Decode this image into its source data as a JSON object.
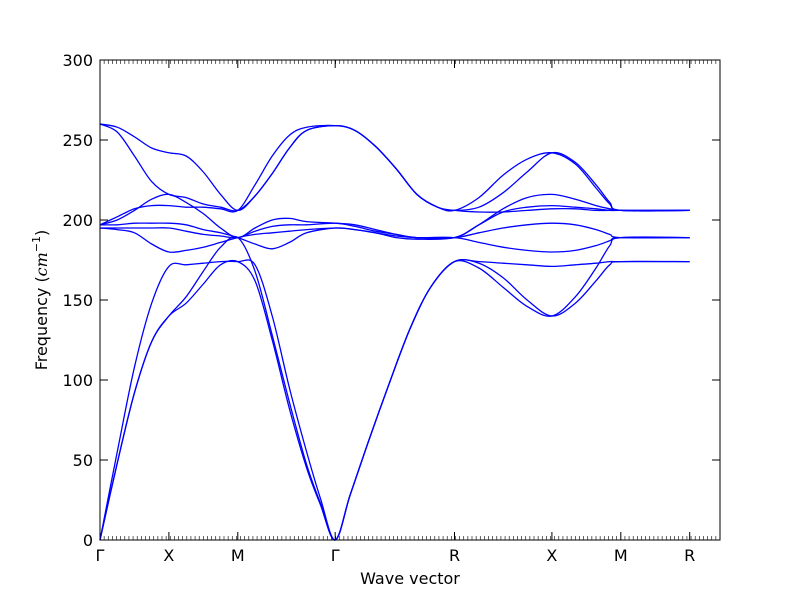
{
  "chart_data": {
    "type": "line",
    "title": "",
    "xlabel": "Wave vector",
    "ylabel_text": "Frequency (",
    "ylabel_unit_base": "cm",
    "ylabel_unit_exp": "−1",
    "ylabel_close": ")",
    "ylim": [
      0,
      300
    ],
    "yticks": [
      0,
      50,
      100,
      150,
      200,
      250,
      300
    ],
    "xlim": [
      0,
      9.0
    ],
    "xticks": [
      {
        "x": 0.0,
        "label": "Γ"
      },
      {
        "x": 1.0,
        "label": "X"
      },
      {
        "x": 2.0,
        "label": "M"
      },
      {
        "x": 3.414,
        "label": "Γ"
      },
      {
        "x": 5.146,
        "label": "R"
      },
      {
        "x": 6.56,
        "label": "X"
      },
      {
        "x": 7.56,
        "label": "M"
      },
      {
        "x": 8.56,
        "label": "R"
      }
    ],
    "line_color": "#0000ff",
    "grid": false,
    "series": [
      {
        "points": [
          [
            0,
            0
          ],
          [
            0.25,
            48
          ],
          [
            0.5,
            92
          ],
          [
            0.75,
            124
          ],
          [
            1.0,
            140
          ],
          [
            1.25,
            148
          ],
          [
            1.5,
            160
          ],
          [
            1.75,
            172
          ],
          [
            2.0,
            174
          ],
          [
            2.25,
            162
          ],
          [
            2.5,
            125
          ],
          [
            2.75,
            82
          ],
          [
            3.0,
            45
          ],
          [
            3.2,
            22
          ],
          [
            3.414,
            0
          ],
          [
            3.63,
            28
          ],
          [
            3.9,
            62
          ],
          [
            4.2,
            98
          ],
          [
            4.5,
            132
          ],
          [
            4.8,
            158
          ],
          [
            5.146,
            174
          ],
          [
            5.5,
            173
          ],
          [
            5.85,
            164
          ],
          [
            6.2,
            150
          ],
          [
            6.56,
            140
          ],
          [
            6.9,
            148
          ],
          [
            7.2,
            162
          ],
          [
            7.4,
            172
          ],
          [
            7.56,
            174
          ],
          [
            8.56,
            174
          ]
        ]
      },
      {
        "points": [
          [
            0,
            0
          ],
          [
            0.25,
            48
          ],
          [
            0.5,
            92
          ],
          [
            0.75,
            124
          ],
          [
            1.0,
            140
          ],
          [
            1.25,
            152
          ],
          [
            1.5,
            168
          ],
          [
            1.75,
            183
          ],
          [
            2.0,
            189
          ],
          [
            2.25,
            168
          ],
          [
            2.5,
            128
          ],
          [
            2.75,
            86
          ],
          [
            3.0,
            47
          ],
          [
            3.2,
            23
          ],
          [
            3.414,
            0
          ],
          [
            3.63,
            28
          ],
          [
            3.9,
            62
          ],
          [
            4.2,
            98
          ],
          [
            4.5,
            132
          ],
          [
            4.8,
            158
          ],
          [
            5.146,
            174
          ],
          [
            5.5,
            170
          ],
          [
            5.85,
            158
          ],
          [
            6.2,
            146
          ],
          [
            6.56,
            140
          ],
          [
            6.9,
            152
          ],
          [
            7.2,
            170
          ],
          [
            7.4,
            184
          ],
          [
            7.56,
            189
          ],
          [
            8.56,
            189
          ]
        ]
      },
      {
        "points": [
          [
            0,
            0
          ],
          [
            0.25,
            55
          ],
          [
            0.5,
            108
          ],
          [
            0.75,
            148
          ],
          [
            1.0,
            171
          ],
          [
            1.25,
            172
          ],
          [
            1.5,
            173
          ],
          [
            1.75,
            174
          ],
          [
            2.0,
            174
          ],
          [
            2.25,
            172
          ],
          [
            2.5,
            140
          ],
          [
            2.75,
            95
          ],
          [
            3.0,
            55
          ],
          [
            3.2,
            26
          ],
          [
            3.414,
            0
          ],
          [
            3.63,
            28
          ],
          [
            3.9,
            62
          ],
          [
            4.2,
            98
          ],
          [
            4.5,
            132
          ],
          [
            4.8,
            158
          ],
          [
            5.146,
            174
          ],
          [
            5.5,
            174
          ],
          [
            5.85,
            173
          ],
          [
            6.2,
            172
          ],
          [
            6.56,
            171
          ],
          [
            6.9,
            172
          ],
          [
            7.2,
            173
          ],
          [
            7.4,
            174
          ],
          [
            7.56,
            174
          ],
          [
            8.56,
            174
          ]
        ]
      },
      {
        "points": [
          [
            0,
            195
          ],
          [
            0.25,
            194
          ],
          [
            0.5,
            192
          ],
          [
            0.75,
            185
          ],
          [
            1.0,
            180
          ],
          [
            1.25,
            181
          ],
          [
            1.5,
            183
          ],
          [
            1.75,
            186
          ],
          [
            2.0,
            189
          ],
          [
            2.25,
            191
          ],
          [
            2.5,
            192
          ],
          [
            2.75,
            193
          ],
          [
            3.0,
            194
          ],
          [
            3.414,
            195
          ],
          [
            3.7,
            194
          ],
          [
            4.0,
            192
          ],
          [
            4.3,
            190
          ],
          [
            4.6,
            189
          ],
          [
            5.146,
            189
          ],
          [
            5.5,
            186
          ],
          [
            5.85,
            183
          ],
          [
            6.2,
            181
          ],
          [
            6.56,
            180
          ],
          [
            6.9,
            181
          ],
          [
            7.2,
            184
          ],
          [
            7.4,
            187
          ],
          [
            7.56,
            189
          ],
          [
            8.56,
            189
          ]
        ]
      },
      {
        "points": [
          [
            0,
            195
          ],
          [
            0.25,
            195
          ],
          [
            0.5,
            195
          ],
          [
            0.75,
            195
          ],
          [
            1.0,
            195
          ],
          [
            1.25,
            193
          ],
          [
            1.5,
            191
          ],
          [
            1.75,
            190
          ],
          [
            2.0,
            189
          ],
          [
            2.25,
            193
          ],
          [
            2.5,
            196
          ],
          [
            2.75,
            197
          ],
          [
            3.0,
            197
          ],
          [
            3.414,
            198
          ],
          [
            3.7,
            196
          ],
          [
            4.0,
            193
          ],
          [
            4.3,
            191
          ],
          [
            4.6,
            189
          ],
          [
            5.146,
            189
          ],
          [
            5.5,
            192
          ],
          [
            5.85,
            195
          ],
          [
            6.2,
            197
          ],
          [
            6.56,
            198
          ],
          [
            6.9,
            197
          ],
          [
            7.2,
            194
          ],
          [
            7.4,
            191
          ],
          [
            7.56,
            189
          ],
          [
            8.56,
            189
          ]
        ]
      },
      {
        "points": [
          [
            0,
            197
          ],
          [
            0.25,
            197
          ],
          [
            0.5,
            198
          ],
          [
            0.75,
            198
          ],
          [
            1.0,
            198
          ],
          [
            1.25,
            197
          ],
          [
            1.5,
            194
          ],
          [
            1.75,
            192
          ],
          [
            2.0,
            189
          ],
          [
            2.25,
            185
          ],
          [
            2.5,
            182
          ],
          [
            2.75,
            186
          ],
          [
            3.0,
            192
          ],
          [
            3.414,
            195
          ],
          [
            3.7,
            194
          ],
          [
            4.0,
            192
          ],
          [
            4.3,
            189
          ],
          [
            4.6,
            188
          ],
          [
            5.146,
            189
          ],
          [
            5.5,
            197
          ],
          [
            5.85,
            205
          ],
          [
            6.2,
            208
          ],
          [
            6.56,
            209
          ],
          [
            6.9,
            208
          ],
          [
            7.2,
            207
          ],
          [
            7.4,
            206
          ],
          [
            7.56,
            206
          ],
          [
            8.56,
            206
          ]
        ]
      },
      {
        "points": [
          [
            0,
            197
          ],
          [
            0.25,
            200
          ],
          [
            0.5,
            206
          ],
          [
            0.75,
            213
          ],
          [
            1.0,
            216
          ],
          [
            1.25,
            211
          ],
          [
            1.5,
            204
          ],
          [
            1.75,
            195
          ],
          [
            2.0,
            189
          ],
          [
            2.25,
            195
          ],
          [
            2.5,
            200
          ],
          [
            2.75,
            201
          ],
          [
            3.0,
            199
          ],
          [
            3.414,
            198
          ],
          [
            3.7,
            197
          ],
          [
            4.0,
            194
          ],
          [
            4.3,
            191
          ],
          [
            4.6,
            189
          ],
          [
            5.146,
            189
          ],
          [
            5.5,
            197
          ],
          [
            5.85,
            207
          ],
          [
            6.2,
            214
          ],
          [
            6.56,
            216
          ],
          [
            6.9,
            213
          ],
          [
            7.2,
            209
          ],
          [
            7.4,
            207
          ],
          [
            7.56,
            206
          ],
          [
            8.56,
            206
          ]
        ]
      },
      {
        "points": [
          [
            0,
            197
          ],
          [
            0.25,
            202
          ],
          [
            0.5,
            207
          ],
          [
            0.75,
            209
          ],
          [
            1.0,
            209
          ],
          [
            1.25,
            208
          ],
          [
            1.5,
            208
          ],
          [
            1.75,
            207
          ],
          [
            2.0,
            206
          ],
          [
            2.25,
            222
          ],
          [
            2.5,
            240
          ],
          [
            2.75,
            253
          ],
          [
            3.0,
            258
          ],
          [
            3.414,
            259
          ],
          [
            3.7,
            256
          ],
          [
            4.0,
            246
          ],
          [
            4.3,
            232
          ],
          [
            4.6,
            216
          ],
          [
            4.9,
            208
          ],
          [
            5.146,
            206
          ],
          [
            5.5,
            208
          ],
          [
            5.85,
            217
          ],
          [
            6.2,
            230
          ],
          [
            6.56,
            242
          ],
          [
            6.9,
            236
          ],
          [
            7.2,
            222
          ],
          [
            7.4,
            211
          ],
          [
            7.56,
            206
          ],
          [
            8.56,
            206
          ]
        ]
      },
      {
        "points": [
          [
            0,
            260
          ],
          [
            0.25,
            255
          ],
          [
            0.5,
            240
          ],
          [
            0.75,
            224
          ],
          [
            1.0,
            216
          ],
          [
            1.25,
            214
          ],
          [
            1.5,
            210
          ],
          [
            1.75,
            208
          ],
          [
            2.0,
            206
          ],
          [
            2.25,
            215
          ],
          [
            2.5,
            229
          ],
          [
            2.75,
            245
          ],
          [
            3.0,
            256
          ],
          [
            3.414,
            259
          ],
          [
            3.7,
            256
          ],
          [
            4.0,
            246
          ],
          [
            4.3,
            232
          ],
          [
            4.6,
            216
          ],
          [
            4.9,
            208
          ],
          [
            5.146,
            206
          ],
          [
            5.5,
            205
          ],
          [
            5.85,
            205
          ],
          [
            6.2,
            206
          ],
          [
            6.56,
            207
          ],
          [
            6.9,
            207
          ],
          [
            7.2,
            206
          ],
          [
            7.4,
            206
          ],
          [
            7.56,
            206
          ],
          [
            8.56,
            206
          ]
        ]
      },
      {
        "points": [
          [
            0,
            260
          ],
          [
            0.25,
            258
          ],
          [
            0.5,
            252
          ],
          [
            0.75,
            245
          ],
          [
            1.0,
            242
          ],
          [
            1.25,
            240
          ],
          [
            1.5,
            230
          ],
          [
            1.75,
            216
          ],
          [
            2.0,
            206
          ],
          [
            2.25,
            215
          ],
          [
            2.5,
            229
          ],
          [
            2.75,
            245
          ],
          [
            3.0,
            256
          ],
          [
            3.414,
            259
          ],
          [
            3.7,
            256
          ],
          [
            4.0,
            246
          ],
          [
            4.3,
            232
          ],
          [
            4.6,
            216
          ],
          [
            4.9,
            208
          ],
          [
            5.146,
            206
          ],
          [
            5.5,
            214
          ],
          [
            5.85,
            228
          ],
          [
            6.2,
            238
          ],
          [
            6.56,
            242
          ],
          [
            6.9,
            235
          ],
          [
            7.2,
            220
          ],
          [
            7.4,
            210
          ],
          [
            7.56,
            206
          ],
          [
            8.56,
            206
          ]
        ]
      }
    ]
  }
}
